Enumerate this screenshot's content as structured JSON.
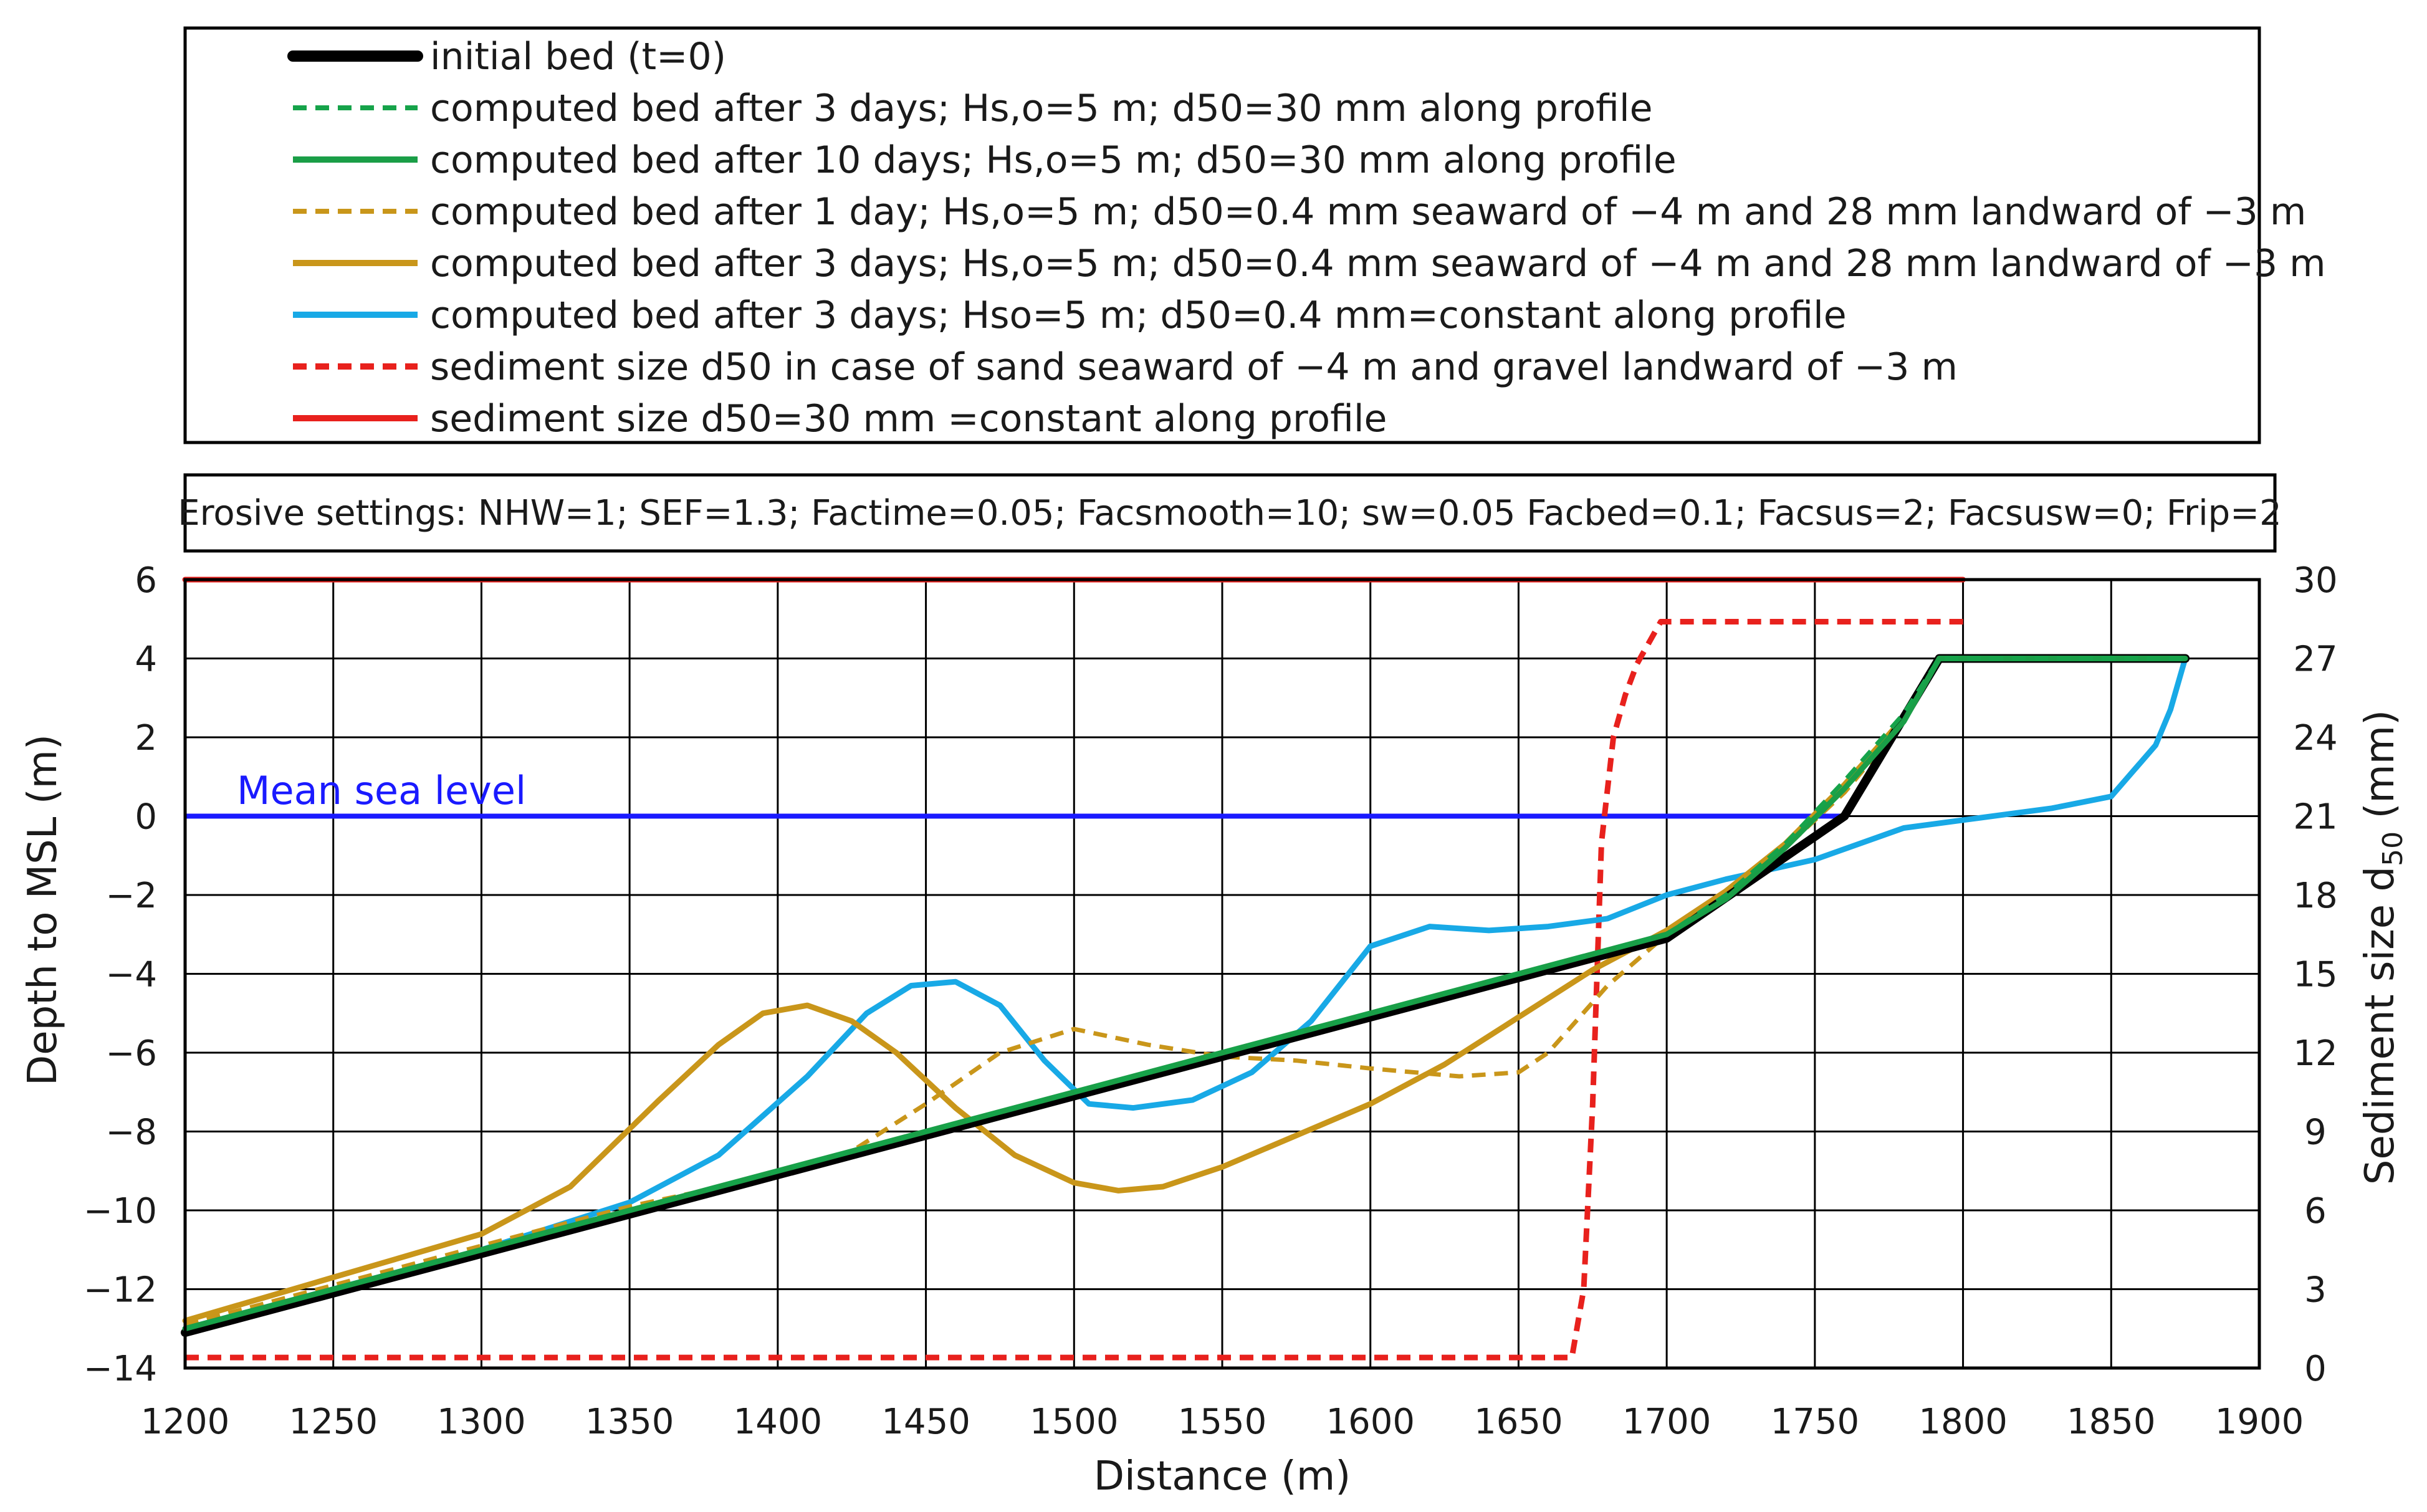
{
  "chart_data": {
    "type": "line",
    "xlabel": "Distance (m)",
    "ylabel": "Depth to MSL (m)",
    "y2label": "Sediment size d",
    "y2label_sub": "50",
    "y2label_unit": " (mm)",
    "xlim": [
      1200,
      1900
    ],
    "ylim": [
      -14,
      6
    ],
    "y2lim": [
      0,
      30
    ],
    "x_ticks": [
      "1200",
      "1250",
      "1300",
      "1350",
      "1400",
      "1450",
      "1500",
      "1550",
      "1600",
      "1650",
      "1700",
      "1750",
      "1800",
      "1850",
      "1900"
    ],
    "y_ticks": [
      "6",
      "4",
      "2",
      "0",
      "−2",
      "−4",
      "−6",
      "−8",
      "−10",
      "−12",
      "−14"
    ],
    "y2_ticks": [
      "30",
      "27",
      "24",
      "21",
      "18",
      "15",
      "12",
      "9",
      "6",
      "3",
      "0"
    ],
    "grid": true,
    "settings_text": "Erosive settings: NHW=1; SEF=1.3; Factime=0.05; Facsmooth=10; sw=0.05  Facbed=0.1; Facsus=2; Facsusw=0;  Frip=2",
    "annotation": "Mean sea level",
    "msl": {
      "axis": "left",
      "x": [
        1200,
        1760
      ],
      "y": [
        0,
        0
      ]
    },
    "series": [
      {
        "name": "initial bed (t=0)",
        "color": "#000000",
        "dash": "solid",
        "width": 14,
        "axis": "left",
        "x": [
          1200,
          1700,
          1760,
          1792,
          1875
        ],
        "y": [
          -13.1,
          -3.1,
          0.0,
          4.0,
          4.0
        ]
      },
      {
        "name": "computed bed after 3 days; Hs,o=5 m; d50=30 mm along profile",
        "color": "#16a34a",
        "dash": "dashed",
        "width": 7,
        "axis": "left",
        "x": [
          1200,
          1300,
          1400,
          1500,
          1600,
          1700,
          1720,
          1740,
          1760,
          1780,
          1792,
          1875
        ],
        "y": [
          -13.0,
          -11.0,
          -9.0,
          -7.0,
          -5.0,
          -3.0,
          -2.0,
          -0.7,
          0.9,
          2.6,
          4.0,
          4.0
        ]
      },
      {
        "name": "computed bed after 10 days; Hs,o=5 m; d50=30 mm along profile",
        "color": "#1a9e47",
        "dash": "solid",
        "width": 9,
        "axis": "left",
        "x": [
          1200,
          1300,
          1400,
          1500,
          1600,
          1700,
          1720,
          1740,
          1760,
          1780,
          1792,
          1875
        ],
        "y": [
          -13.0,
          -11.0,
          -9.0,
          -7.0,
          -5.0,
          -3.0,
          -2.1,
          -0.8,
          0.7,
          2.4,
          4.0,
          4.0
        ]
      },
      {
        "name": "computed bed after 1 day; Hs,o=5 m; d50=0.4 mm seaward of −4 m and 28 mm landward of −3 m",
        "color": "#c9961a",
        "dash": "dashed",
        "width": 7,
        "axis": "left",
        "x": [
          1200,
          1250,
          1300,
          1350,
          1400,
          1425,
          1450,
          1475,
          1500,
          1525,
          1550,
          1575,
          1600,
          1630,
          1650,
          1660,
          1680,
          1700,
          1720,
          1740,
          1760,
          1780,
          1792,
          1875
        ],
        "y": [
          -12.9,
          -11.9,
          -10.9,
          -9.9,
          -9.1,
          -8.5,
          -7.3,
          -6.0,
          -5.4,
          -5.8,
          -6.1,
          -6.2,
          -6.4,
          -6.6,
          -6.5,
          -6.0,
          -4.3,
          -3.0,
          -2.0,
          -0.8,
          0.6,
          2.4,
          4.0,
          4.0
        ]
      },
      {
        "name": "computed bed after 3 days; Hs,o=5 m; d50=0.4 mm seaward of −4 m and 28 mm landward of −3 m",
        "color": "#c9961a",
        "dash": "solid",
        "width": 9,
        "axis": "left",
        "x": [
          1200,
          1250,
          1300,
          1330,
          1360,
          1380,
          1395,
          1410,
          1425,
          1440,
          1460,
          1480,
          1500,
          1515,
          1530,
          1550,
          1575,
          1600,
          1625,
          1650,
          1675,
          1700,
          1720,
          1740,
          1760,
          1780,
          1792,
          1875
        ],
        "y": [
          -12.8,
          -11.7,
          -10.6,
          -9.4,
          -7.2,
          -5.8,
          -5.0,
          -4.8,
          -5.2,
          -6.0,
          -7.4,
          -8.6,
          -9.3,
          -9.5,
          -9.4,
          -8.9,
          -8.1,
          -7.3,
          -6.3,
          -5.1,
          -3.9,
          -2.9,
          -1.9,
          -0.7,
          0.8,
          2.5,
          4.0,
          4.0
        ]
      },
      {
        "name": "computed bed after 3 days; Hso=5 m; d50=0.4 mm=constant along profile",
        "color": "#18a9e6",
        "dash": "solid",
        "width": 9,
        "axis": "left",
        "x": [
          1200,
          1250,
          1300,
          1350,
          1380,
          1410,
          1430,
          1445,
          1460,
          1475,
          1490,
          1505,
          1520,
          1540,
          1560,
          1580,
          1600,
          1620,
          1640,
          1660,
          1680,
          1700,
          1720,
          1750,
          1780,
          1800,
          1830,
          1850,
          1865,
          1870,
          1875
        ],
        "y": [
          -13.0,
          -12.0,
          -11.0,
          -9.8,
          -8.6,
          -6.6,
          -5.0,
          -4.3,
          -4.2,
          -4.8,
          -6.2,
          -7.3,
          -7.4,
          -7.2,
          -6.5,
          -5.2,
          -3.3,
          -2.8,
          -2.9,
          -2.8,
          -2.6,
          -2.0,
          -1.6,
          -1.1,
          -0.3,
          -0.1,
          0.2,
          0.5,
          1.8,
          2.7,
          4.0
        ]
      },
      {
        "name": "sediment size d50 in case of sand seaward of −4 m and gravel landward of −3 m",
        "color": "#e8211d",
        "dash": "dashed",
        "width": 9,
        "axis": "right",
        "x": [
          1200,
          1668,
          1672,
          1675,
          1678,
          1682,
          1686,
          1690,
          1698,
          1800
        ],
        "y": [
          0.4,
          0.4,
          3.0,
          10.0,
          20.0,
          24.0,
          25.6,
          26.8,
          28.4,
          28.4
        ]
      },
      {
        "name": "sediment size d50=30 mm =constant along profile",
        "color": "#e8211d",
        "dash": "solid",
        "width": 9,
        "axis": "right",
        "x": [
          1200,
          1800
        ],
        "y": [
          30,
          30
        ]
      }
    ]
  }
}
